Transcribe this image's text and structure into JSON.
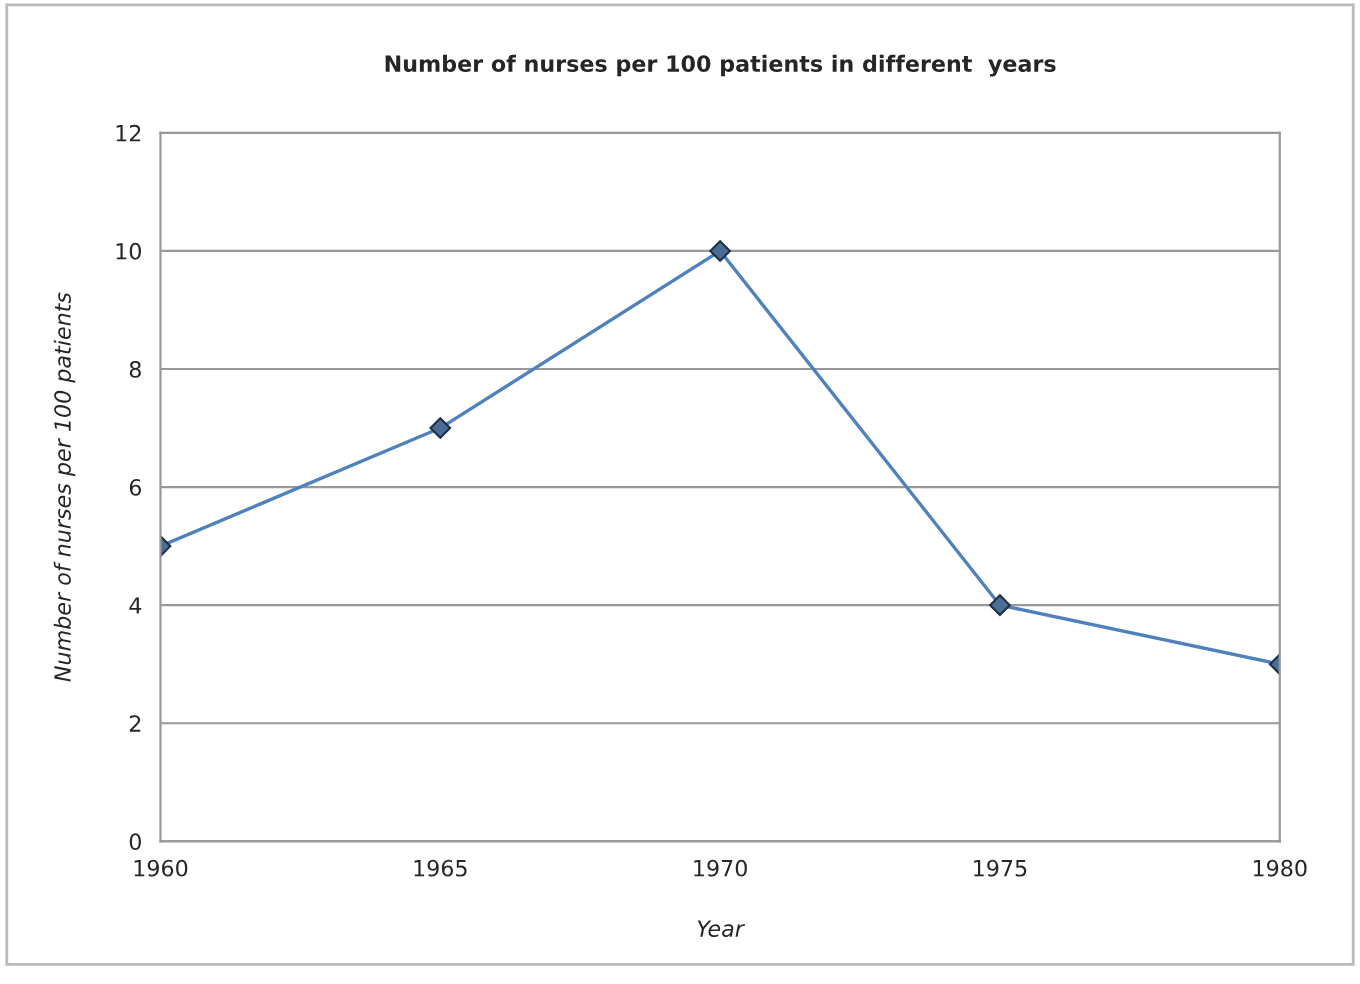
{
  "chart_data": {
    "type": "line",
    "title": "Number of nurses per 100 patients in different  years",
    "xlabel": "Year",
    "ylabel": "Number of nurses per 100 patients",
    "x": [
      1960,
      1965,
      1970,
      1975,
      1980
    ],
    "series": [
      {
        "color": "#4f81bd",
        "values": [
          5,
          7,
          10,
          4,
          3
        ]
      }
    ],
    "xlim": [
      1960,
      1980
    ],
    "xticks": [
      1960,
      1965,
      1970,
      1975,
      1980
    ],
    "ylim": [
      0,
      12
    ],
    "yticks": [
      0,
      2,
      4,
      6,
      8,
      10,
      12
    ],
    "grid": "y",
    "legend": false,
    "marker": "diamond",
    "line_style": "solid"
  }
}
